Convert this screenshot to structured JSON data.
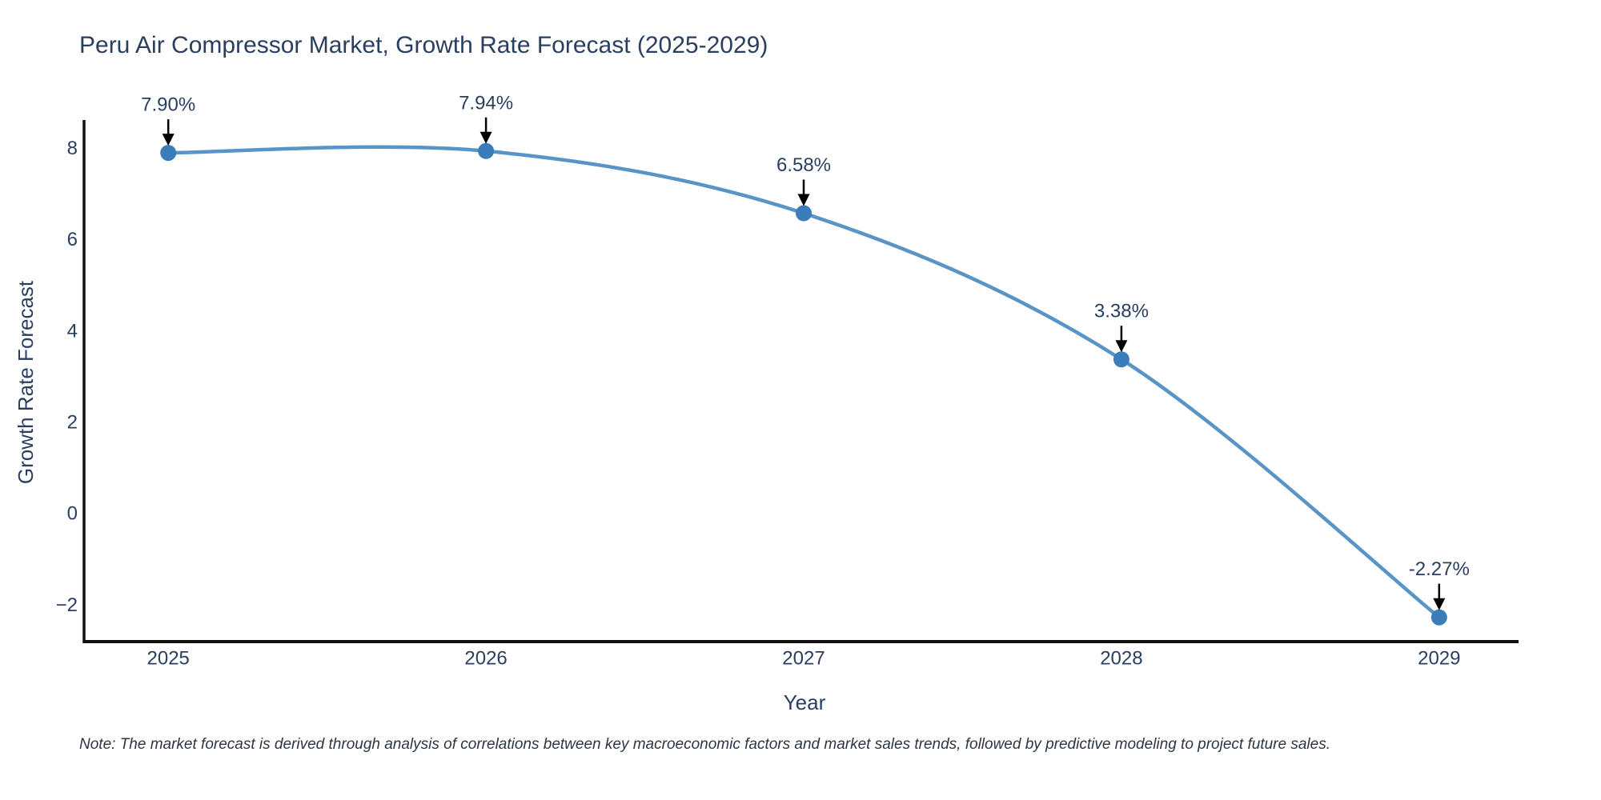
{
  "note": "Note: The market forecast is derived through analysis of correlations between key macroeconomic factors and market sales trends, followed by predictive modeling to project future sales.",
  "chart_data": {
    "type": "line",
    "title": "Peru Air Compressor Market, Growth Rate Forecast (2025-2029)",
    "xlabel": "Year",
    "ylabel": "Growth Rate Forecast",
    "x": [
      2025,
      2026,
      2027,
      2028,
      2029
    ],
    "values": [
      7.9,
      7.94,
      6.58,
      3.38,
      -2.27
    ],
    "point_labels": [
      "7.90%",
      "7.94%",
      "6.58%",
      "3.38%",
      "-2.27%"
    ],
    "line_shape": "spline",
    "markers": true,
    "grid": false,
    "legend_position": "none",
    "xlim": [
      2024.735,
      2029.25
    ],
    "ylim": [
      -2.8,
      8.62
    ],
    "xticks": [
      2025,
      2026,
      2027,
      2028,
      2029
    ],
    "xtick_labels": [
      "2025",
      "2026",
      "2027",
      "2028",
      "2029"
    ],
    "yticks": [
      -2,
      0,
      2,
      4,
      6,
      8
    ],
    "ytick_labels": [
      "−2",
      "0",
      "2",
      "4",
      "6",
      "8"
    ],
    "colors": {
      "line": "#4b8bc2",
      "marker": "#3b7cba",
      "arrow": "#000000",
      "text": "#2a3f5f",
      "axis": "#111111",
      "background": "#ffffff"
    }
  }
}
